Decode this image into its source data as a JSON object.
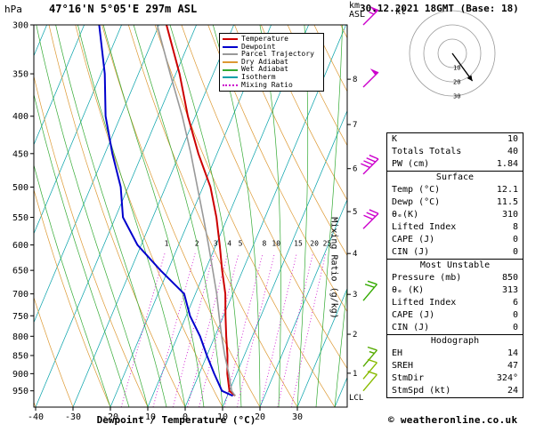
{
  "meta": {
    "station_title": "47°16'N 5°05'E 297m ASL",
    "date_title": "30.12.2021 18GMT (Base: 18)",
    "pressure_unit": "hPa",
    "altitude_unit_line1": "km",
    "altitude_unit_line2": "ASL",
    "hodograph_unit": "kt",
    "lcl_label": "LCL",
    "xaxis_label": "Dewpoint / Temperature (°C)",
    "mixing_axis_label": "Mixing Ratio (g/kg)",
    "copyright": "© weatheronline.co.uk"
  },
  "colors": {
    "temperature": "#cc0000",
    "dewpoint": "#0000cc",
    "parcel": "#999999",
    "dry_adiabat": "#dd9933",
    "wet_adiabat": "#33aa33",
    "isotherm": "#00a0a8",
    "mixing_ratio": "#cc00cc"
  },
  "legend": [
    {
      "label": "Temperature",
      "color": "#cc0000",
      "style": "solid"
    },
    {
      "label": "Dewpoint",
      "color": "#0000cc",
      "style": "solid"
    },
    {
      "label": "Parcel Trajectory",
      "color": "#999999",
      "style": "solid"
    },
    {
      "label": "Dry Adiabat",
      "color": "#dd9933",
      "style": "solid"
    },
    {
      "label": "Wet Adiabat",
      "color": "#33aa33",
      "style": "solid"
    },
    {
      "label": "Isotherm",
      "color": "#00a0a8",
      "style": "solid"
    },
    {
      "label": "Mixing Ratio",
      "color": "#cc00cc",
      "style": "dotted"
    }
  ],
  "axes": {
    "pressure_ticks": [
      300,
      350,
      400,
      450,
      500,
      550,
      600,
      650,
      700,
      750,
      800,
      850,
      900,
      950
    ],
    "temp_ticks": [
      -40,
      -30,
      -20,
      -10,
      0,
      10,
      20,
      30
    ],
    "km_ticks": [
      1,
      2,
      3,
      4,
      5,
      6,
      7,
      8
    ],
    "mixing_ratio_labels": [
      1,
      2,
      3,
      4,
      5,
      8,
      10,
      15,
      20,
      25
    ]
  },
  "chart_data": {
    "type": "line",
    "chart_kind": "skew-t-log-p sounding",
    "title": "47°16'N 5°05'E 297m ASL",
    "xlabel": "Dewpoint / Temperature (°C)",
    "ylabel": "hPa",
    "x_range_C": [
      -40,
      35
    ],
    "pressure_range_hPa": [
      300,
      1000
    ],
    "pressure_hPa": [
      965,
      950,
      900,
      850,
      800,
      750,
      700,
      650,
      600,
      550,
      500,
      450,
      400,
      350,
      300
    ],
    "series": [
      {
        "name": "Temperature",
        "color": "#cc0000",
        "width": 2,
        "values_C": [
          12.1,
          10,
          7.5,
          5.5,
          3,
          0.5,
          -2,
          -5.5,
          -9,
          -13,
          -18,
          -25,
          -32,
          -39,
          -48
        ]
      },
      {
        "name": "Dewpoint",
        "color": "#0000cc",
        "width": 2,
        "values_C": [
          11.5,
          8,
          4,
          0,
          -4,
          -9,
          -13,
          -22,
          -31,
          -38,
          -42,
          -48,
          -54,
          -59,
          -66
        ]
      },
      {
        "name": "Parcel Trajectory",
        "color": "#999999",
        "width": 1.6,
        "values_C": [
          12.1,
          10.6,
          7.9,
          4.8,
          1.8,
          -1.2,
          -4.3,
          -8,
          -12,
          -16.5,
          -21.5,
          -27,
          -33.5,
          -41.5,
          -50.5
        ]
      }
    ]
  },
  "wind_barbs": [
    {
      "pressure": 300,
      "speed_kt": 55,
      "dir_deg": 45,
      "color": "#cc00cc"
    },
    {
      "pressure": 365,
      "speed_kt": 50,
      "dir_deg": 45,
      "color": "#cc00cc"
    },
    {
      "pressure": 480,
      "speed_kt": 40,
      "dir_deg": 45,
      "color": "#cc00cc"
    },
    {
      "pressure": 570,
      "speed_kt": 30,
      "dir_deg": 45,
      "color": "#cc00cc"
    },
    {
      "pressure": 715,
      "speed_kt": 20,
      "dir_deg": 40,
      "color": "#33aa00"
    },
    {
      "pressure": 880,
      "speed_kt": 15,
      "dir_deg": 40,
      "color": "#55aa00"
    },
    {
      "pressure": 915,
      "speed_kt": 10,
      "dir_deg": 40,
      "color": "#88bb00"
    },
    {
      "pressure": 950,
      "speed_kt": 10,
      "dir_deg": 40,
      "color": "#88bb00"
    }
  ],
  "hodograph": {
    "rings_kt": [
      10,
      20,
      30
    ],
    "storm_dir_deg": 324,
    "storm_speed_kt": 24
  },
  "stats": {
    "sections": [
      {
        "header": null,
        "rows": [
          [
            "K",
            "10"
          ],
          [
            "Totals Totals",
            "40"
          ],
          [
            "PW (cm)",
            "1.84"
          ]
        ]
      },
      {
        "header": "Surface",
        "rows": [
          [
            "Temp (°C)",
            "12.1"
          ],
          [
            "Dewp (°C)",
            "11.5"
          ],
          [
            "θₑ(K)",
            "310"
          ],
          [
            "Lifted Index",
            "8"
          ],
          [
            "CAPE (J)",
            "0"
          ],
          [
            "CIN (J)",
            "0"
          ]
        ]
      },
      {
        "header": "Most Unstable",
        "rows": [
          [
            "Pressure (mb)",
            "850"
          ],
          [
            "θₑ (K)",
            "313"
          ],
          [
            "Lifted Index",
            "6"
          ],
          [
            "CAPE (J)",
            "0"
          ],
          [
            "CIN (J)",
            "0"
          ]
        ]
      },
      {
        "header": "Hodograph",
        "rows": [
          [
            "EH",
            "14"
          ],
          [
            "SREH",
            "47"
          ],
          [
            "StmDir",
            "324°"
          ],
          [
            "StmSpd (kt)",
            "24"
          ]
        ]
      }
    ]
  }
}
